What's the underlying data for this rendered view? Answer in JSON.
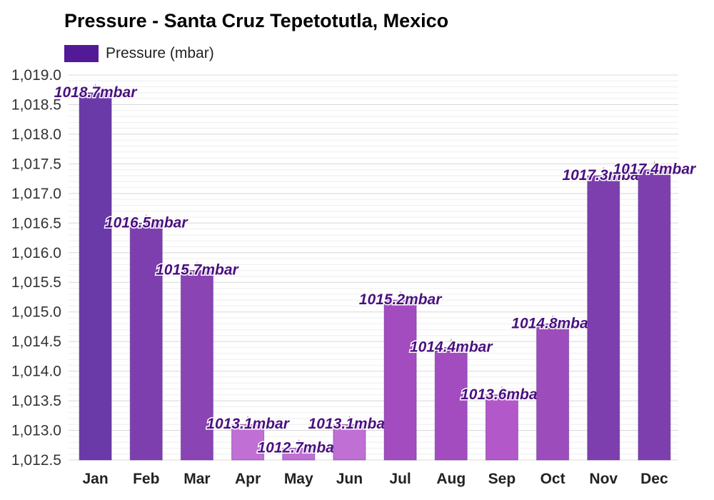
{
  "chart_data": {
    "type": "bar",
    "title": "Pressure - Santa Cruz Tepetotutla, Mexico",
    "legend": {
      "label": "Pressure (mbar)",
      "color": "#531a97",
      "placement": "top-left"
    },
    "categories": [
      "Jan",
      "Feb",
      "Mar",
      "Apr",
      "May",
      "Jun",
      "Jul",
      "Aug",
      "Sep",
      "Oct",
      "Nov",
      "Dec"
    ],
    "series": [
      {
        "name": "Pressure (mbar)",
        "values": [
          1018.7,
          1016.5,
          1015.7,
          1013.1,
          1012.7,
          1013.1,
          1015.2,
          1014.4,
          1013.6,
          1014.8,
          1017.3,
          1017.4
        ],
        "data_labels": [
          "1018.7mbar",
          "1016.5mbar",
          "1015.7mbar",
          "1013.1mbar",
          "1012.7mbar",
          "1013.1mbar",
          "1015.2mbar",
          "1014.4mbar",
          "1013.6mbar",
          "1014.8mbar",
          "1017.3mbar",
          "1017.4mbar"
        ],
        "bar_colors": [
          "#6a3aa8",
          "#7d3fae",
          "#8b44b3",
          "#c070d4",
          "#c070d4",
          "#c070d4",
          "#a34cc0",
          "#a34cc0",
          "#b358c9",
          "#9c4cbb",
          "#7d3fae",
          "#7d3fae"
        ]
      }
    ],
    "ylim": [
      1012.5,
      1019.0
    ],
    "y_ticks": [
      "1,012.5",
      "1,013.0",
      "1,013.5",
      "1,014.0",
      "1,014.5",
      "1,015.0",
      "1,015.5",
      "1,016.0",
      "1,016.5",
      "1,017.0",
      "1,017.5",
      "1,018.0",
      "1,018.5",
      "1,019.0"
    ],
    "xlabel": "",
    "ylabel": "",
    "grid": true
  }
}
